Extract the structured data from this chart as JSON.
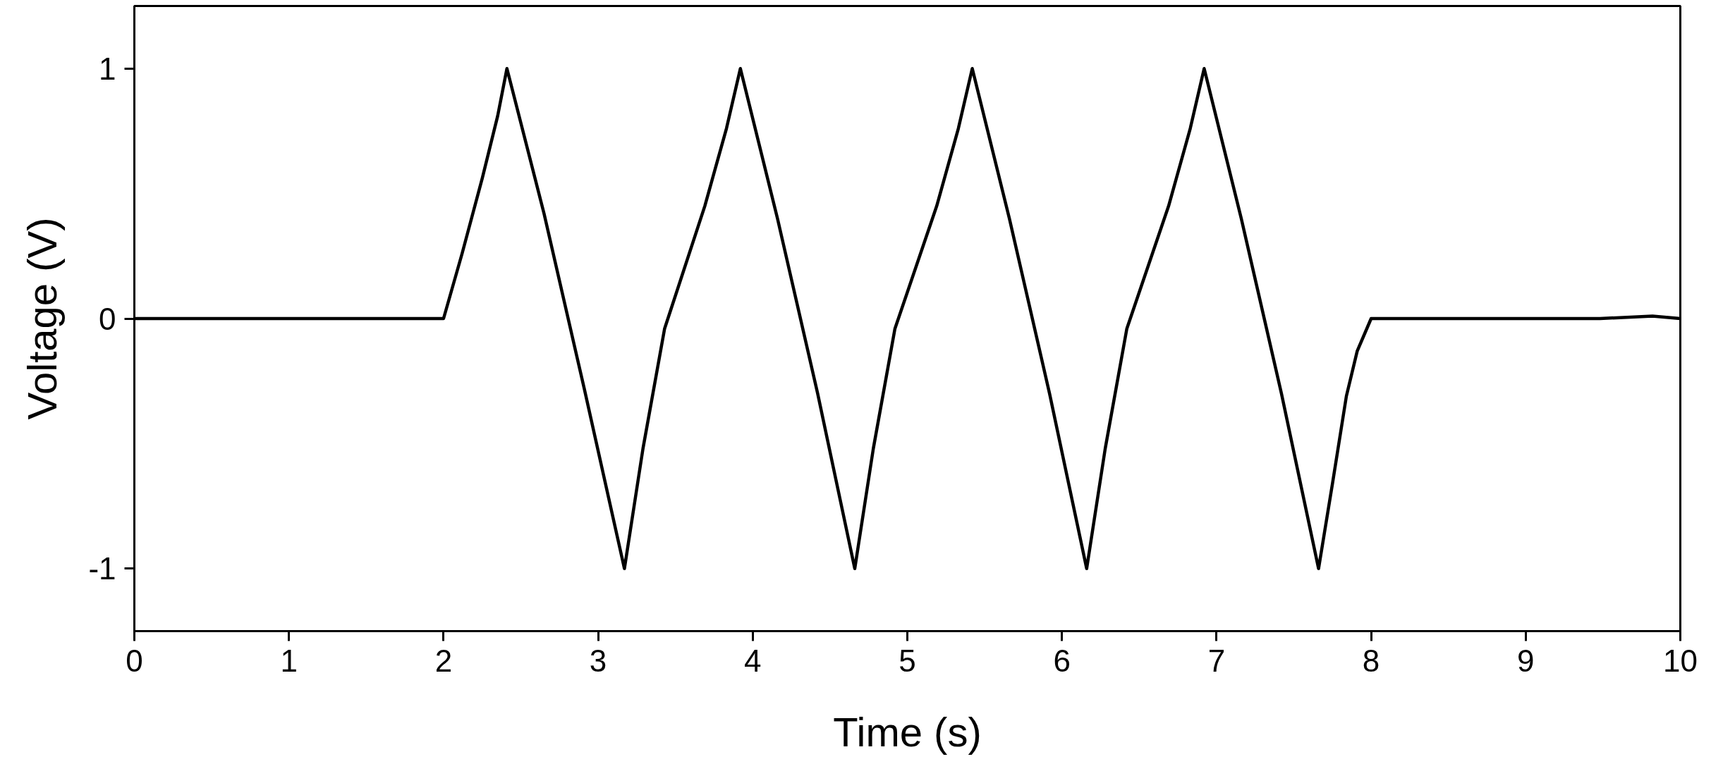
{
  "chart_data": {
    "type": "line",
    "xlabel": "Time (s)",
    "ylabel": "Voltage (V)",
    "xlim": [
      0,
      10
    ],
    "ylim": [
      -1.25,
      1.25
    ],
    "xticks": [
      0,
      1,
      2,
      3,
      4,
      5,
      6,
      7,
      8,
      9,
      10
    ],
    "yticks": [
      {
        "value": -1,
        "label": "-1"
      },
      0,
      1
    ],
    "grid": false,
    "marker": "none",
    "line_style": "solid",
    "series": [
      {
        "color": "#000000",
        "x": [
          0,
          2.0,
          2.12,
          2.25,
          2.35,
          2.41,
          2.65,
          2.91,
          3.17,
          3.29,
          3.43,
          3.69,
          3.83,
          3.92,
          4.16,
          4.42,
          4.66,
          4.78,
          4.92,
          5.19,
          5.33,
          5.42,
          5.66,
          5.92,
          6.16,
          6.28,
          6.42,
          6.69,
          6.83,
          6.92,
          7.16,
          7.42,
          7.66,
          7.75,
          7.84,
          7.91,
          8.0,
          9.48,
          9.82,
          10
        ],
        "values": [
          0,
          0,
          0.26,
          0.56,
          0.81,
          1,
          0.42,
          -0.28,
          -1,
          -0.52,
          -0.04,
          0.45,
          0.76,
          1,
          0.4,
          -0.3,
          -1,
          -0.52,
          -0.04,
          0.45,
          0.76,
          1,
          0.4,
          -0.3,
          -1,
          -0.52,
          -0.04,
          0.45,
          0.76,
          1,
          0.4,
          -0.3,
          -1,
          -0.66,
          -0.31,
          -0.13,
          0,
          0,
          0.01,
          0
        ]
      }
    ]
  }
}
